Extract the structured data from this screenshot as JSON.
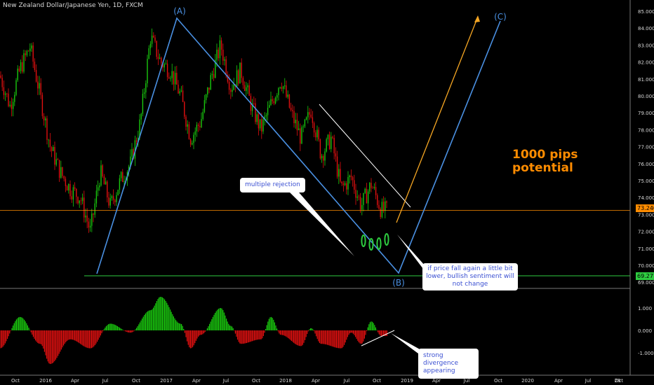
{
  "title": "New Zealand Dollar/Japanese Yen, 1D, FXCM",
  "colors": {
    "up": "#19c90e",
    "down": "#e01010",
    "wave": "#4a90e2",
    "channel": "#ffffff",
    "projection": "#f5a623",
    "current": "#ff8c00",
    "support": "#2ecc40",
    "osc_up": "#19c90e",
    "osc_down": "#e01010"
  },
  "chart_data": [
    {
      "type": "line",
      "title": "New Zealand Dollar/Japanese Yen, 1D, FXCM",
      "x_ticks": [
        "Oct",
        "2016",
        "Apr",
        "Jul",
        "Oct",
        "2017",
        "Apr",
        "Jul",
        "Oct",
        "2018",
        "Apr",
        "Jul",
        "Oct",
        "2019",
        "Apr",
        "Jul",
        "Oct",
        "2020",
        "Apr",
        "Jul",
        "Oct",
        "28"
      ],
      "y_ticks": [
        "85.000",
        "84.000",
        "83.000",
        "82.000",
        "81.000",
        "80.000",
        "79.000",
        "78.000",
        "77.000",
        "76.000",
        "75.000",
        "74.000",
        "73.000",
        "72.000",
        "71.000",
        "70.000",
        "69.000"
      ],
      "ylim": [
        68.6,
        85.2
      ],
      "price_points": [
        {
          "x": "2015-09",
          "y": 81.2
        },
        {
          "x": "2015-10",
          "y": 79.4
        },
        {
          "x": "2015-11",
          "y": 81.6
        },
        {
          "x": "2015-12",
          "y": 82.9
        },
        {
          "x": "2016-01",
          "y": 80.0
        },
        {
          "x": "2016-02",
          "y": 77.0
        },
        {
          "x": "2016-03",
          "y": 75.5
        },
        {
          "x": "2016-04",
          "y": 74.5
        },
        {
          "x": "2016-05",
          "y": 74.0
        },
        {
          "x": "2016-06",
          "y": 72.0
        },
        {
          "x": "2016-07",
          "y": 75.5
        },
        {
          "x": "2016-08",
          "y": 73.5
        },
        {
          "x": "2016-09",
          "y": 75.0
        },
        {
          "x": "2016-10",
          "y": 76.0
        },
        {
          "x": "2016-11",
          "y": 78.5
        },
        {
          "x": "2016-12",
          "y": 83.5
        },
        {
          "x": "2017-01",
          "y": 82.0
        },
        {
          "x": "2017-02",
          "y": 81.5
        },
        {
          "x": "2017-03",
          "y": 80.0
        },
        {
          "x": "2017-04",
          "y": 77.5
        },
        {
          "x": "2017-05",
          "y": 78.5
        },
        {
          "x": "2017-06",
          "y": 81.0
        },
        {
          "x": "2017-07",
          "y": 83.0
        },
        {
          "x": "2017-08",
          "y": 80.5
        },
        {
          "x": "2017-09",
          "y": 81.5
        },
        {
          "x": "2017-10",
          "y": 79.5
        },
        {
          "x": "2017-11",
          "y": 78.0
        },
        {
          "x": "2017-12",
          "y": 79.5
        },
        {
          "x": "2018-01",
          "y": 81.0
        },
        {
          "x": "2018-02",
          "y": 79.0
        },
        {
          "x": "2018-03",
          "y": 77.5
        },
        {
          "x": "2018-04",
          "y": 79.2
        },
        {
          "x": "2018-05",
          "y": 76.5
        },
        {
          "x": "2018-06",
          "y": 77.5
        },
        {
          "x": "2018-07",
          "y": 74.5
        },
        {
          "x": "2018-08",
          "y": 75.2
        },
        {
          "x": "2018-09",
          "y": 73.5
        },
        {
          "x": "2018-10",
          "y": 74.8
        },
        {
          "x": "2018-11",
          "y": 73.24
        }
      ],
      "current_price": "73.240",
      "support_price": "69.277",
      "waves": [
        {
          "label": "(A)",
          "x": "2017-02",
          "y": 84.4
        },
        {
          "label": "(B)",
          "x": "2018-12",
          "y": 69.1
        },
        {
          "label": "(C)",
          "x": "2019-10",
          "y": 84.1
        }
      ],
      "wave_start": {
        "x": "2016-06",
        "y": 69.1
      },
      "projection": {
        "from": {
          "x": "2018-11",
          "y": 72.5
        },
        "to": {
          "x": "2019-07",
          "y": 84.7
        }
      },
      "channel_line": {
        "from": {
          "x": "2018-03",
          "y": 79.5
        },
        "to": {
          "x": "2018-12",
          "y": 73.8
        }
      }
    },
    {
      "type": "bar",
      "title": "",
      "y_ticks": [
        "1.000",
        "0.000",
        "-1.000"
      ],
      "ylim": [
        -1.7,
        1.7
      ],
      "histogram_points": [
        {
          "x": "2015-09",
          "y": -0.8
        },
        {
          "x": "2015-11",
          "y": 0.6
        },
        {
          "x": "2016-01",
          "y": -0.6
        },
        {
          "x": "2016-02",
          "y": -1.5
        },
        {
          "x": "2016-04",
          "y": -0.4
        },
        {
          "x": "2016-06",
          "y": -0.8
        },
        {
          "x": "2016-08",
          "y": 0.3
        },
        {
          "x": "2016-10",
          "y": -0.1
        },
        {
          "x": "2016-12",
          "y": 0.9
        },
        {
          "x": "2017-01",
          "y": 1.5
        },
        {
          "x": "2017-03",
          "y": 0.3
        },
        {
          "x": "2017-04",
          "y": -0.8
        },
        {
          "x": "2017-05",
          "y": -0.2
        },
        {
          "x": "2017-07",
          "y": 1.0
        },
        {
          "x": "2017-08",
          "y": 0.2
        },
        {
          "x": "2017-09",
          "y": -0.6
        },
        {
          "x": "2017-11",
          "y": -0.4
        },
        {
          "x": "2017-12",
          "y": 0.6
        },
        {
          "x": "2018-01",
          "y": -0.2
        },
        {
          "x": "2018-03",
          "y": -0.7
        },
        {
          "x": "2018-04",
          "y": 0.1
        },
        {
          "x": "2018-05",
          "y": -0.6
        },
        {
          "x": "2018-07",
          "y": -0.8
        },
        {
          "x": "2018-08",
          "y": -0.1
        },
        {
          "x": "2018-09",
          "y": -0.6
        },
        {
          "x": "2018-10",
          "y": 0.4
        },
        {
          "x": "2018-11",
          "y": -0.25
        }
      ]
    }
  ],
  "callouts": {
    "rejection": "multiple rejection",
    "fall": "if price fall again a little bit lower, bullish sentiment will not change",
    "divergence": "strong divergence appearing"
  },
  "potential": "1000 pips\npotential"
}
